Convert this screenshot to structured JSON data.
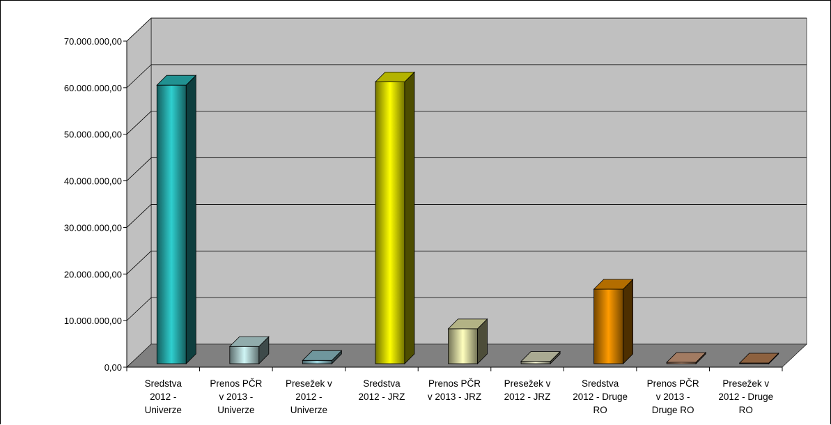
{
  "chart_data": {
    "type": "bar",
    "title": "",
    "xlabel": "",
    "ylabel": "",
    "ylim": [
      0,
      70000000
    ],
    "grid": true,
    "legend": "none",
    "y_tick_labels": [
      "0,00",
      "10.000.000,00",
      "20.000.000,00",
      "30.000.000,00",
      "40.000.000,00",
      "50.000.000,00",
      "60.000.000,00",
      "70.000.000,00"
    ],
    "categories": [
      [
        "Sredstva",
        "2012 -",
        "Univerze"
      ],
      [
        "Prenos PČR",
        "v 2013 -",
        "Univerze"
      ],
      [
        "Presežek v",
        "2012 -",
        "Univerze"
      ],
      [
        "Sredstva",
        "2012 - JRZ"
      ],
      [
        "Prenos PČR",
        "v 2013 - JRZ"
      ],
      [
        "Presežek v",
        "2012 - JRZ"
      ],
      [
        "Sredstva",
        "2012 - Druge",
        "RO"
      ],
      [
        "Prenos PČR",
        "v 2013 -",
        "Druge RO"
      ],
      [
        "Presežek v",
        "2012 - Druge",
        "RO"
      ]
    ],
    "values": [
      59800000,
      3700000,
      700000,
      60500000,
      7500000,
      500000,
      16000000,
      300000,
      150000
    ],
    "bar_colors": [
      "#2fcfcf",
      "#cff5f5",
      "#9ed6e0",
      "#ffff00",
      "#ffffbe",
      "#f3f3d0",
      "#ff9b00",
      "#e8b08c",
      "#c98a5a"
    ],
    "wall_color": "#c0c0c0",
    "floor_color": "#808080"
  }
}
